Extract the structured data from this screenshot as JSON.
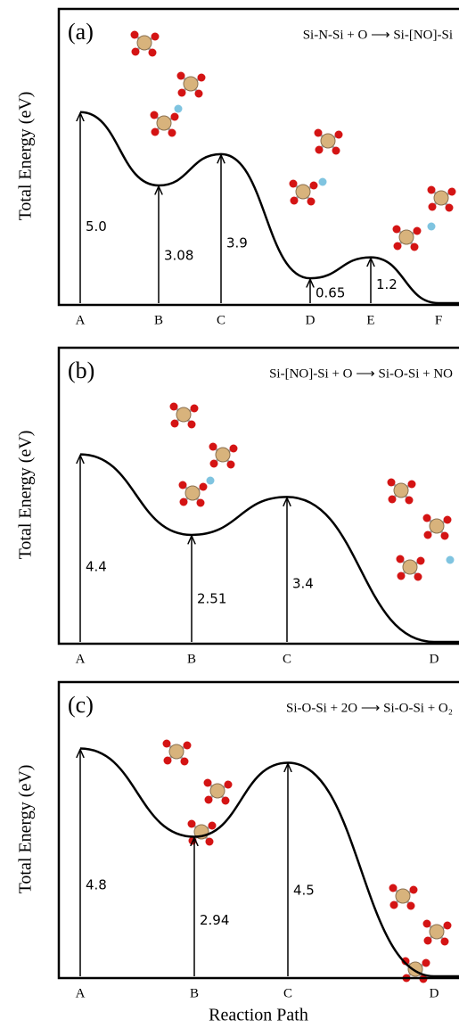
{
  "chart_data": [
    {
      "type": "energy_profile",
      "panel": "(a)",
      "reaction": "Si-N-Si + O ⟶ Si-[NO]-Si",
      "y_label": "Total Energy (eV)",
      "categories": [
        "A",
        "B",
        "C",
        "D",
        "E",
        "F"
      ],
      "values": [
        5.0,
        3.08,
        3.9,
        0.65,
        1.2,
        0
      ],
      "value_labels": [
        "5.0",
        "3.08",
        "3.9",
        "0.65",
        "1.2",
        null
      ],
      "ylim": [
        0,
        7.7
      ],
      "color": "#000000"
    },
    {
      "type": "energy_profile",
      "panel": "(b)",
      "reaction": "Si-[NO]-Si + O ⟶ Si-O-Si + NO",
      "y_label": "Total Energy (eV)",
      "categories": [
        "A",
        "B",
        "C",
        "D"
      ],
      "values": [
        4.4,
        2.51,
        3.4,
        0
      ],
      "value_labels": [
        "4.4",
        "2.51",
        "3.4",
        null
      ],
      "ylim": [
        0,
        6.9
      ],
      "color": "#000000"
    },
    {
      "type": "energy_profile",
      "panel": "(c)",
      "reaction": "Si-O-Si + 2O ⟶ Si-O-Si + O₂",
      "y_label": "Total Energy (eV)",
      "x_label": "Reaction Path",
      "categories": [
        "A",
        "B",
        "C",
        "D"
      ],
      "values": [
        4.8,
        2.94,
        4.5,
        0
      ],
      "value_labels": [
        "4.8",
        "2.94",
        "4.5",
        null
      ],
      "ylim": [
        0,
        6.2
      ],
      "color": "#000000"
    }
  ]
}
